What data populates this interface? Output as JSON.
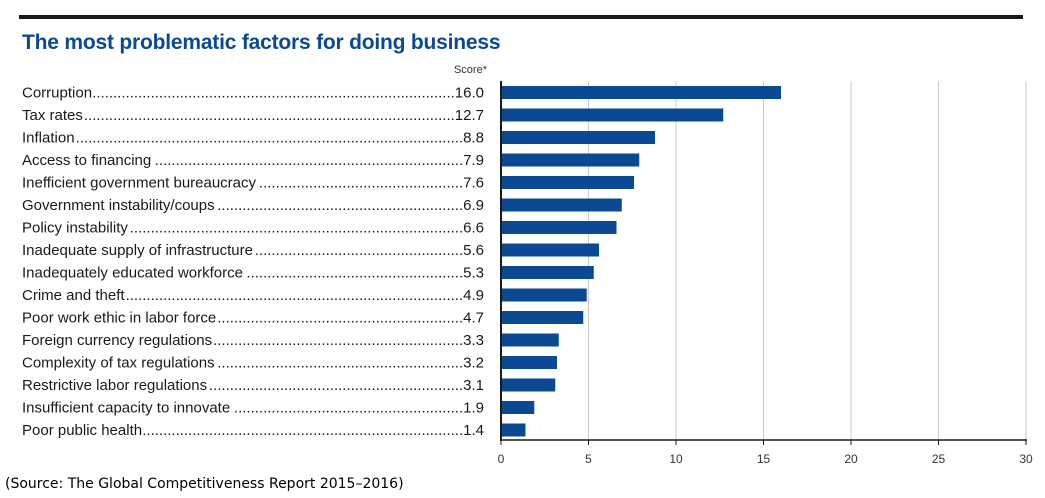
{
  "title": "The most problematic factors for doing business",
  "source_note": "(Source: The Global Competitiveness Report 2015–2016)",
  "colors": {
    "bar": "#0b4a93",
    "title": "#0b4a93",
    "grid": "#c8c8c8",
    "axis": "#1a1a1a"
  },
  "chart_data": {
    "type": "bar",
    "orientation": "horizontal",
    "ylabel": "Score*",
    "categories": [
      "Corruption",
      "Tax rates",
      "Inflation",
      "Access to financing",
      "Inefficient government bureaucracy",
      "Government instability/coups",
      "Policy instability",
      "Inadequate supply of infrastructure",
      "Inadequately educated workforce",
      "Crime and theft",
      "Poor work ethic in labor force",
      "Foreign currency regulations",
      "Complexity of tax regulations",
      "Restrictive labor regulations",
      "Insufficient capacity to innovate",
      "Poor public health"
    ],
    "values": [
      16.0,
      12.7,
      8.8,
      7.9,
      7.6,
      6.9,
      6.6,
      5.6,
      5.3,
      4.9,
      4.7,
      3.3,
      3.2,
      3.1,
      1.9,
      1.4
    ],
    "value_labels": [
      "16.0",
      "12.7",
      "8.8",
      "7.9",
      "7.6",
      "6.9",
      "6.6",
      "5.6",
      "5.3",
      "4.9",
      "4.7",
      "3.3",
      "3.2",
      "3.1",
      "1.9",
      "1.4"
    ],
    "xlim": [
      0,
      30
    ],
    "xticks": [
      0,
      5,
      10,
      15,
      20,
      25,
      30
    ],
    "grid": true,
    "legend": "none"
  }
}
